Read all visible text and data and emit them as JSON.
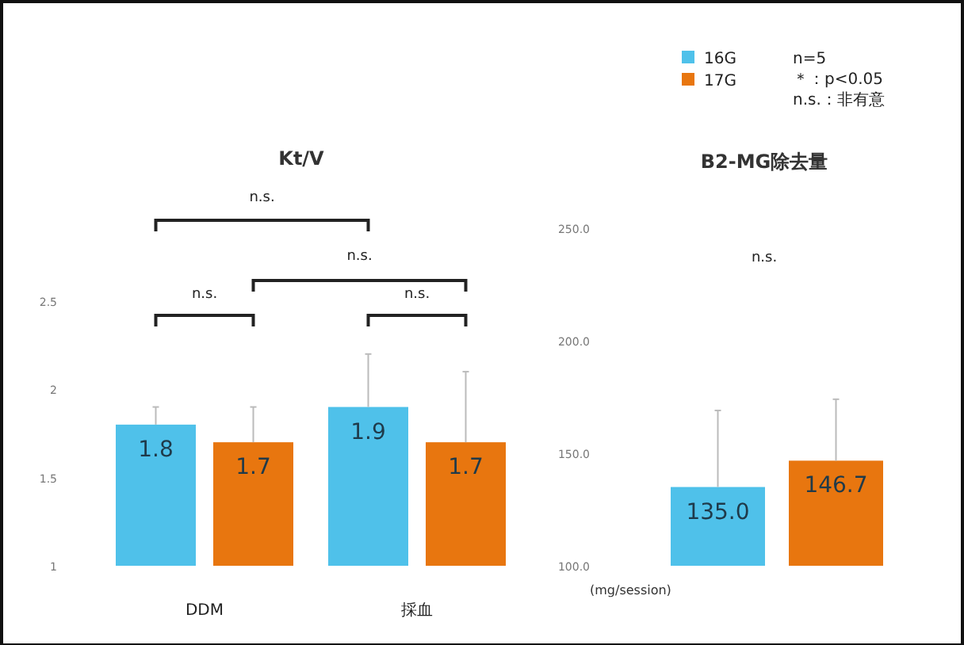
{
  "chart_data": [
    {
      "type": "bar",
      "title": "Kt/V",
      "categories": [
        "DDM",
        "採血"
      ],
      "series": [
        {
          "color": "#4fc1ea",
          "values": [
            1.8,
            1.9
          ],
          "errors": [
            [
              1.8,
              1.9
            ],
            [
              1.9,
              2.2
            ]
          ]
        },
        {
          "color": "#e8760f",
          "values": [
            1.7,
            1.7
          ],
          "errors": [
            [
              1.7,
              1.9
            ],
            [
              1.7,
              2.1
            ]
          ]
        }
      ],
      "ylim": [
        1,
        2.5
      ],
      "yticks": [
        1,
        1.5,
        2,
        2.5
      ],
      "data_labels": true,
      "grid": false,
      "annotations": [
        "n.s.",
        "n.s.",
        "n.s.",
        "n.s."
      ]
    },
    {
      "type": "bar",
      "title": "B2-MG除去量",
      "ylabel": "(mg/session)",
      "categories": [
        null
      ],
      "series": [
        {
          "name": "16G",
          "color": "#4fc1ea",
          "values": [
            135.0
          ],
          "value_labels": [
            "135.0"
          ],
          "errors": [
            [
              135.0,
              169
            ]
          ]
        },
        {
          "name": "17G",
          "color": "#e8760f",
          "values": [
            146.7
          ],
          "value_labels": [
            "146.7"
          ],
          "errors": [
            [
              146.7,
              174
            ]
          ]
        }
      ],
      "ylim": [
        100,
        250
      ],
      "yticks": [
        {
          "value": 100,
          "label": "100.0"
        },
        {
          "value": 150,
          "label": "150.0"
        },
        {
          "value": 200,
          "label": "200.0"
        },
        {
          "value": 250,
          "label": "250.0"
        }
      ],
      "grid": false,
      "legend": "top",
      "annotations": [
        "n.s.",
        "n=5",
        "＊：p<0.05",
        "n.s.：非有意"
      ]
    }
  ]
}
